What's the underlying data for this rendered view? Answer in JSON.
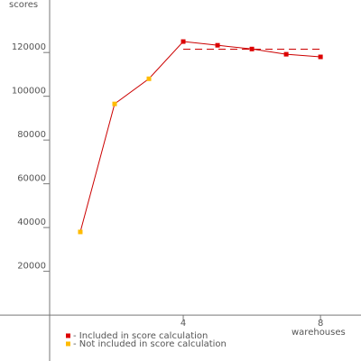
{
  "chart_data": {
    "type": "line",
    "y_label": "scores",
    "x_label": "warehouses",
    "line_color": "#cc0000",
    "series": [
      {
        "name": "- Included in score calculation",
        "color": "#dd0000",
        "x": [
          4,
          5,
          6,
          7,
          8
        ],
        "values": [
          125000,
          123300,
          121600,
          119200,
          118000
        ]
      },
      {
        "name": "- Not included in score calculation",
        "color": "#ffbb00",
        "x": [
          1,
          2,
          3
        ],
        "values": [
          38000,
          96500,
          108000
        ]
      }
    ],
    "reference_line": {
      "value": 121500,
      "x": [
        4,
        8
      ],
      "color": "#cc0000"
    },
    "xlim": [
      -1.34,
      9.18
    ],
    "ylim": [
      -21000,
      144000
    ],
    "xticks": [
      4,
      8
    ],
    "yticks": [
      20000,
      40000,
      60000,
      80000,
      100000,
      120000
    ]
  }
}
